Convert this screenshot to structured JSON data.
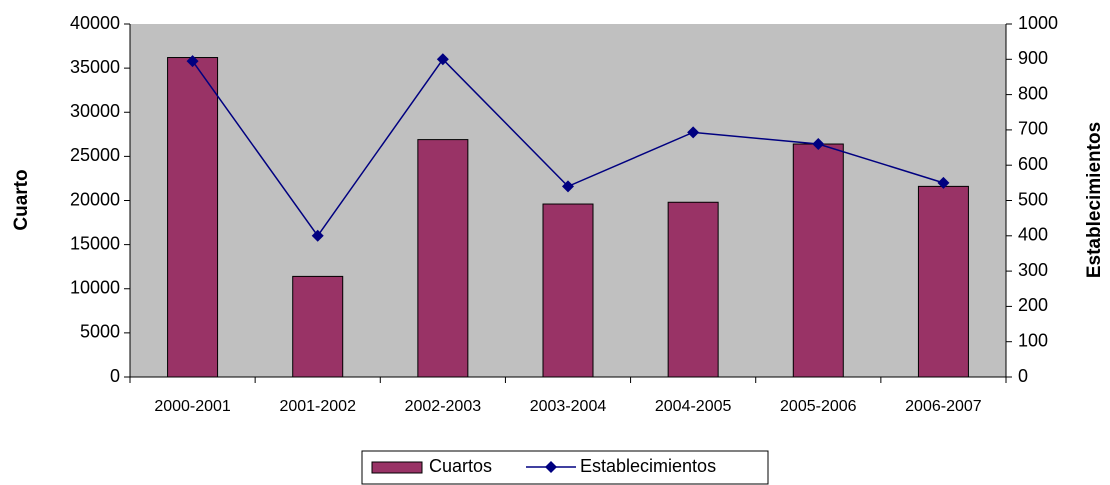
{
  "chart_data": {
    "type": "bar-line",
    "categories": [
      "2000-2001",
      "2001-2002",
      "2002-2003",
      "2003-2004",
      "2004-2005",
      "2005-2006",
      "2006-2007"
    ],
    "series": [
      {
        "name": "Cuartos",
        "color": "#993366",
        "type": "bar",
        "values": [
          36200,
          11400,
          26900,
          19600,
          19800,
          26400,
          21600
        ]
      },
      {
        "name": "Establecimientos",
        "color": "#000080",
        "type": "line",
        "axis": "y2",
        "values": [
          895,
          400,
          900,
          540,
          693,
          660,
          550
        ]
      }
    ],
    "y_label": "Cuarto",
    "y2_label": "Establecimientos",
    "ylim": [
      0,
      40000
    ],
    "yticks": [
      0,
      5000,
      10000,
      15000,
      20000,
      25000,
      30000,
      35000,
      40000
    ],
    "y2lim": [
      0,
      1000
    ],
    "y2ticks": [
      0,
      100,
      200,
      300,
      400,
      500,
      600,
      700,
      800,
      900,
      1000
    ],
    "plot_background": "#c0c0c0",
    "legend": "bottom"
  }
}
